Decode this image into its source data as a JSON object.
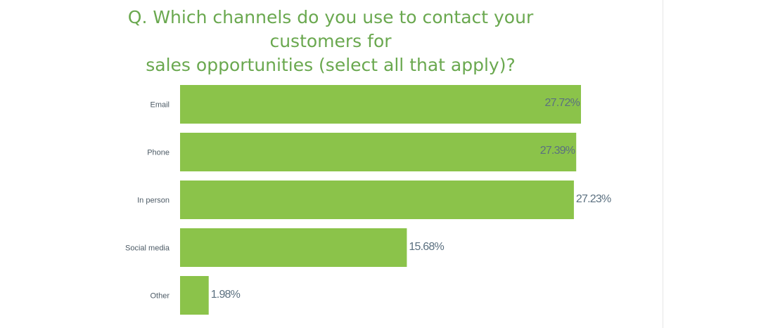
{
  "chart_data": {
    "type": "bar",
    "orientation": "horizontal",
    "title_lines": [
      "Q. Which channels do you use to contact your customers for",
      "sales opportunities (select all that apply)?"
    ],
    "categories": [
      "Email",
      "Phone",
      "In person",
      "Social media",
      "Other"
    ],
    "values": [
      27.72,
      27.39,
      27.23,
      15.68,
      1.98
    ],
    "value_labels": [
      "27.72%",
      "27.39%",
      "27.23%",
      "15.68%",
      "1.98%"
    ],
    "xlim": [
      0,
      27.72
    ],
    "grid": false,
    "legend": "none"
  },
  "colors": {
    "bar": "#8bc34a",
    "title": "#6aa84f",
    "category_label": "#4d5b66",
    "value_label": "#5b7080"
  }
}
